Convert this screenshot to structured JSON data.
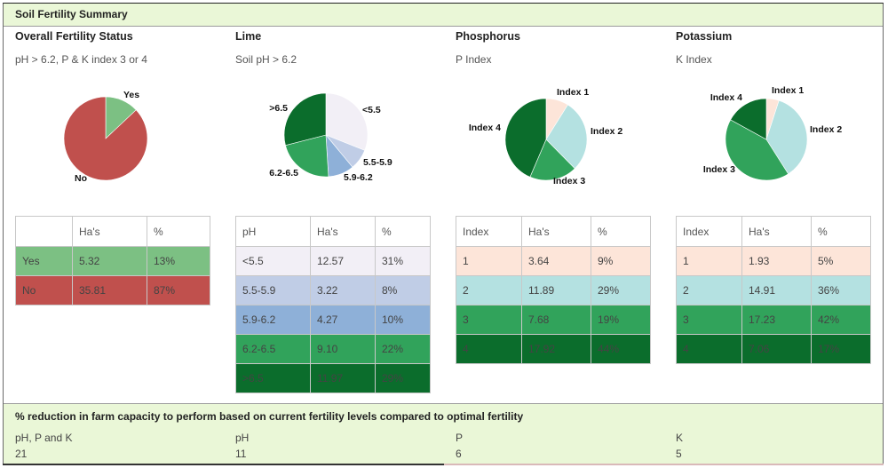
{
  "panel": {
    "title": "Soil Fertility Summary"
  },
  "columns": [
    {
      "key": "overall",
      "title": "Overall Fertility Status",
      "subtitle": "pH > 6.2, P & K index 3 or 4",
      "table": {
        "headers": [
          "",
          "Ha's",
          "%"
        ],
        "rows": [
          {
            "label": "Yes",
            "has": "5.32",
            "pct": "13%",
            "color": "#7cc083"
          },
          {
            "label": "No",
            "has": "35.81",
            "pct": "87%",
            "color": "#c0504d"
          }
        ]
      }
    },
    {
      "key": "lime",
      "title": "Lime",
      "subtitle": "Soil pH > 6.2",
      "table": {
        "headers": [
          "pH",
          "Ha's",
          "%"
        ],
        "rows": [
          {
            "label": "<5.5",
            "has": "12.57",
            "pct": "31%",
            "color": "#f2eff6"
          },
          {
            "label": "5.5-5.9",
            "has": "3.22",
            "pct": "8%",
            "color": "#c0cde6"
          },
          {
            "label": "5.9-6.2",
            "has": "4.27",
            "pct": "10%",
            "color": "#8eb0d8"
          },
          {
            "label": "6.2-6.5",
            "has": "9.10",
            "pct": "22%",
            "color": "#31a35b"
          },
          {
            "label": ">6.5",
            "has": "11.97",
            "pct": "29%",
            "color": "#0b6d2c"
          }
        ]
      }
    },
    {
      "key": "phosphorus",
      "title": "Phosphorus",
      "subtitle": "P Index",
      "table": {
        "headers": [
          "Index",
          "Ha's",
          "%"
        ],
        "rows": [
          {
            "label": "1",
            "has": "3.64",
            "pct": "9%",
            "color": "#fde5d9"
          },
          {
            "label": "2",
            "has": "11.89",
            "pct": "29%",
            "color": "#b4e1e1"
          },
          {
            "label": "3",
            "has": "7.68",
            "pct": "19%",
            "color": "#31a35b"
          },
          {
            "label": "4",
            "has": "17.92",
            "pct": "44%",
            "color": "#0b6d2c"
          }
        ]
      }
    },
    {
      "key": "potassium",
      "title": "Potassium",
      "subtitle": "K Index",
      "table": {
        "headers": [
          "Index",
          "Ha's",
          "%"
        ],
        "rows": [
          {
            "label": "1",
            "has": "1.93",
            "pct": "5%",
            "color": "#fde5d9"
          },
          {
            "label": "2",
            "has": "14.91",
            "pct": "36%",
            "color": "#b4e1e1"
          },
          {
            "label": "3",
            "has": "17.23",
            "pct": "42%",
            "color": "#31a35b"
          },
          {
            "label": "4",
            "has": "7.06",
            "pct": "17%",
            "color": "#0b6d2c"
          }
        ]
      }
    }
  ],
  "chart_data": [
    {
      "type": "pie",
      "categories": [
        "Yes",
        "No"
      ],
      "values": [
        13,
        87
      ],
      "colors": [
        "#7cc083",
        "#c0504d"
      ]
    },
    {
      "type": "pie",
      "categories": [
        "<5.5",
        "5.5-5.9",
        "5.9-6.2",
        "6.2-6.5",
        ">6.5"
      ],
      "values": [
        31,
        8,
        10,
        22,
        29
      ],
      "colors": [
        "#f2eff6",
        "#c0cde6",
        "#8eb0d8",
        "#31a35b",
        "#0b6d2c"
      ]
    },
    {
      "type": "pie",
      "categories": [
        "Index 1",
        "Index 2",
        "Index 3",
        "Index 4"
      ],
      "values": [
        9,
        29,
        19,
        44
      ],
      "colors": [
        "#fde5d9",
        "#b4e1e1",
        "#31a35b",
        "#0b6d2c"
      ]
    },
    {
      "type": "pie",
      "categories": [
        "Index 1",
        "Index 2",
        "Index 3",
        "Index 4"
      ],
      "values": [
        5,
        36,
        42,
        17
      ],
      "colors": [
        "#fde5d9",
        "#b4e1e1",
        "#31a35b",
        "#0b6d2c"
      ]
    }
  ],
  "reduction": {
    "title": "% reduction in farm capacity to perform based on current fertility levels compared to optimal fertility",
    "items": [
      {
        "label": "pH, P and K",
        "value": "21"
      },
      {
        "label": "pH",
        "value": "11"
      },
      {
        "label": "P",
        "value": "6"
      },
      {
        "label": "K",
        "value": "5"
      }
    ]
  }
}
